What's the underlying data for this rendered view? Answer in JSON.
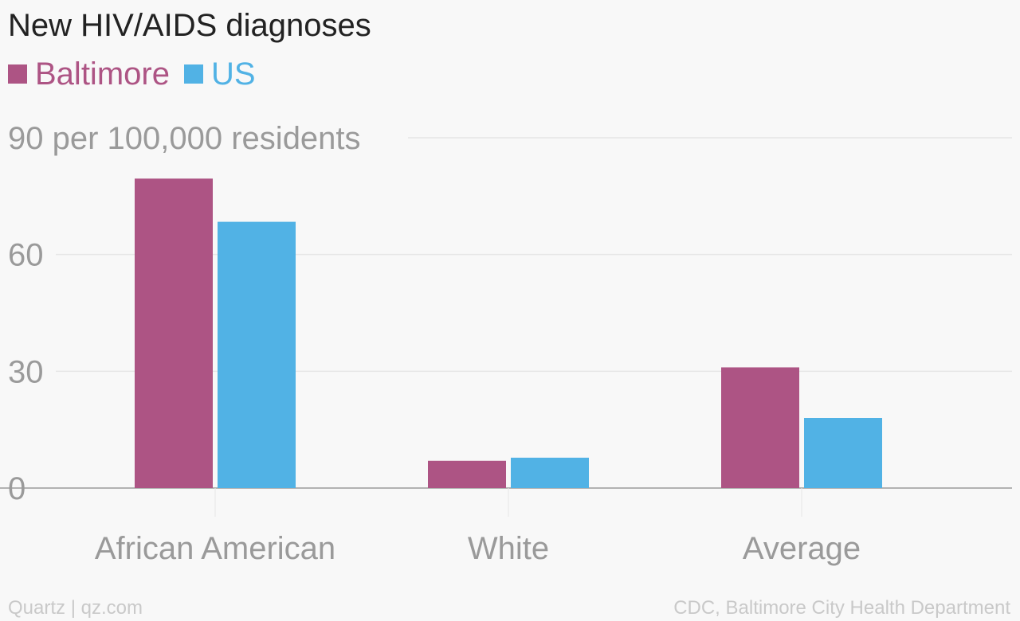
{
  "chart_data": {
    "type": "bar",
    "title": "New HIV/AIDS diagnoses",
    "ylabel": "per 100,000 residents",
    "xlabel": "",
    "categories": [
      "African American",
      "White",
      "Average"
    ],
    "series": [
      {
        "name": "Baltimore",
        "color": "#ad5484",
        "values": [
          79.5,
          7,
          31
        ]
      },
      {
        "name": "US",
        "color": "#51b2e5",
        "values": [
          68.4,
          7.8,
          18
        ]
      }
    ],
    "ylim": [
      0,
      90
    ],
    "yticks": [
      0,
      30,
      60,
      90
    ],
    "ytick_labels": [
      "0",
      "30",
      "60",
      "90 per 100,000 residents"
    ],
    "grid": true,
    "legend_position": "top-left"
  },
  "footer": {
    "left": "Quartz | qz.com",
    "right": "CDC, Baltimore City Health Department"
  },
  "colors": {
    "background": "#f8f8f8",
    "grid": "#e6e6e6",
    "axis": "#9a9a9a",
    "tick_text": "#9a9a9a",
    "footer_text": "#c9c9c9"
  }
}
